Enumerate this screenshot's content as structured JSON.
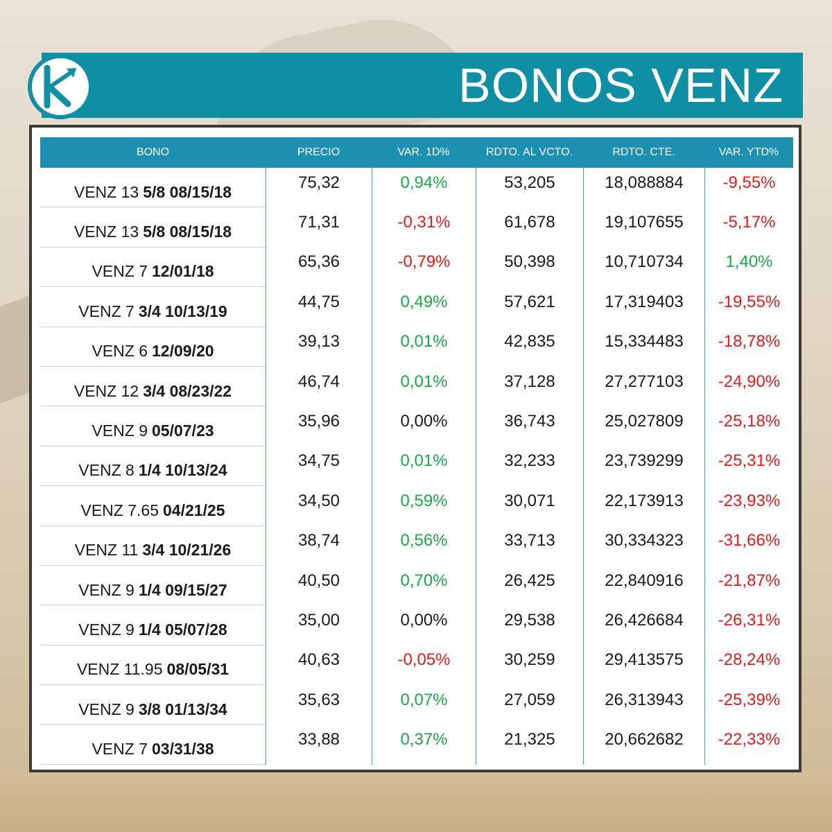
{
  "header": {
    "title": "BONOS VENZ"
  },
  "colors": {
    "accent": "#0f8fa4",
    "table_header": "#1d8fb1",
    "positive": "#1aaa4a",
    "negative": "#e31b1b"
  },
  "table": {
    "columns": [
      "BONO",
      "PRECIO",
      "VAR. 1D%",
      "RDTO. AL VCTO.",
      "RDTO. CTE.",
      "VAR. YTD%"
    ],
    "rows": [
      {
        "bono_a": "VENZ 13",
        "bono_b": "5/8 08/15/18",
        "precio": "75,32",
        "var1d": "0,94%",
        "var1d_sign": "pos",
        "rdto_vcto": "53,205",
        "rdto_cte": "18,088884",
        "var_ytd": "-9,55%",
        "ytd_sign": "neg"
      },
      {
        "bono_a": "VENZ 13",
        "bono_b": "5/8 08/15/18",
        "precio": "71,31",
        "var1d": "-0,31%",
        "var1d_sign": "neg",
        "rdto_vcto": "61,678",
        "rdto_cte": "19,107655",
        "var_ytd": "-5,17%",
        "ytd_sign": "neg"
      },
      {
        "bono_a": "VENZ 7",
        "bono_b": "12/01/18",
        "precio": "65,36",
        "var1d": "-0,79%",
        "var1d_sign": "neg",
        "rdto_vcto": "50,398",
        "rdto_cte": "10,710734",
        "var_ytd": "1,40%",
        "ytd_sign": "pos"
      },
      {
        "bono_a": "VENZ 7",
        "bono_b": "3/4 10/13/19",
        "precio": "44,75",
        "var1d": "0,49%",
        "var1d_sign": "pos",
        "rdto_vcto": "57,621",
        "rdto_cte": "17,319403",
        "var_ytd": "-19,55%",
        "ytd_sign": "neg"
      },
      {
        "bono_a": "VENZ 6",
        "bono_b": "12/09/20",
        "precio": "39,13",
        "var1d": "0,01%",
        "var1d_sign": "pos",
        "rdto_vcto": "42,835",
        "rdto_cte": "15,334483",
        "var_ytd": "-18,78%",
        "ytd_sign": "neg"
      },
      {
        "bono_a": "VENZ 12",
        "bono_b": "3/4 08/23/22",
        "precio": "46,74",
        "var1d": "0,01%",
        "var1d_sign": "pos",
        "rdto_vcto": "37,128",
        "rdto_cte": "27,277103",
        "var_ytd": "-24,90%",
        "ytd_sign": "neg"
      },
      {
        "bono_a": "VENZ 9",
        "bono_b": "05/07/23",
        "precio": "35,96",
        "var1d": "0,00%",
        "var1d_sign": "neu",
        "rdto_vcto": "36,743",
        "rdto_cte": "25,027809",
        "var_ytd": "-25,18%",
        "ytd_sign": "neg"
      },
      {
        "bono_a": "VENZ 8",
        "bono_b": "1/4 10/13/24",
        "precio": "34,75",
        "var1d": "0,01%",
        "var1d_sign": "pos",
        "rdto_vcto": "32,233",
        "rdto_cte": "23,739299",
        "var_ytd": "-25,31%",
        "ytd_sign": "neg"
      },
      {
        "bono_a": "VENZ 7.65",
        "bono_b": "04/21/25",
        "precio": "34,50",
        "var1d": "0,59%",
        "var1d_sign": "pos",
        "rdto_vcto": "30,071",
        "rdto_cte": "22,173913",
        "var_ytd": "-23,93%",
        "ytd_sign": "neg"
      },
      {
        "bono_a": "VENZ 11",
        "bono_b": "3/4 10/21/26",
        "precio": "38,74",
        "var1d": "0,56%",
        "var1d_sign": "pos",
        "rdto_vcto": "33,713",
        "rdto_cte": "30,334323",
        "var_ytd": "-31,66%",
        "ytd_sign": "neg"
      },
      {
        "bono_a": "VENZ 9",
        "bono_b": "1/4 09/15/27",
        "precio": "40,50",
        "var1d": "0,70%",
        "var1d_sign": "pos",
        "rdto_vcto": "26,425",
        "rdto_cte": "22,840916",
        "var_ytd": "-21,87%",
        "ytd_sign": "neg"
      },
      {
        "bono_a": "VENZ 9",
        "bono_b": "1/4 05/07/28",
        "precio": "35,00",
        "var1d": "0,00%",
        "var1d_sign": "neu",
        "rdto_vcto": "29,538",
        "rdto_cte": "26,426684",
        "var_ytd": "-26,31%",
        "ytd_sign": "neg"
      },
      {
        "bono_a": "VENZ 11.95",
        "bono_b": "08/05/31",
        "precio": "40,63",
        "var1d": "-0,05%",
        "var1d_sign": "neg",
        "rdto_vcto": "30,259",
        "rdto_cte": "29,413575",
        "var_ytd": "-28,24%",
        "ytd_sign": "neg"
      },
      {
        "bono_a": "VENZ 9",
        "bono_b": "3/8 01/13/34",
        "precio": "35,63",
        "var1d": "0,07%",
        "var1d_sign": "pos",
        "rdto_vcto": "27,059",
        "rdto_cte": "26,313943",
        "var_ytd": "-25,39%",
        "ytd_sign": "neg"
      },
      {
        "bono_a": "VENZ 7",
        "bono_b": "03/31/38",
        "precio": "33,88",
        "var1d": "0,37%",
        "var1d_sign": "pos",
        "rdto_vcto": "21,325",
        "rdto_cte": "20,662682",
        "var_ytd": "-22,33%",
        "ytd_sign": "neg"
      }
    ]
  }
}
